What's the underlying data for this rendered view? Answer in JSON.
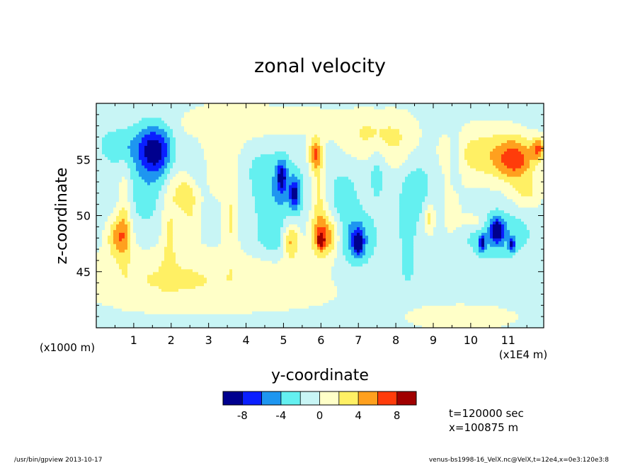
{
  "chart_data": {
    "type": "heatmap",
    "title": "zonal velocity",
    "xlabel": "y-coordinate",
    "ylabel": "z-coordinate",
    "x_scale_note": "(x1E4 m)",
    "y_scale_note": "(x1000 m)",
    "xlim": [
      0,
      11.95
    ],
    "ylim": [
      40,
      60
    ],
    "x_ticks": [
      1,
      2,
      3,
      4,
      5,
      6,
      7,
      8,
      9,
      10,
      11
    ],
    "y_ticks": [
      45,
      50,
      55
    ],
    "colorbar": {
      "levels": [
        -10,
        -8,
        -6,
        -4,
        -2,
        0,
        2,
        4,
        6,
        8,
        10
      ],
      "tick_labels": [
        "-8",
        "-4",
        "0",
        "4",
        "8"
      ],
      "tick_values": [
        -8,
        -4,
        0,
        4,
        8
      ],
      "colors": [
        "#00008e",
        "#0a1fff",
        "#1e96f0",
        "#64f0f0",
        "#c8f5f5",
        "#ffffc8",
        "#fff064",
        "#ffa01e",
        "#ff3c0a",
        "#a00000"
      ]
    },
    "background_level": -1,
    "features": [
      {
        "x": 1.6,
        "z": 55.8,
        "v": -8.4,
        "sx": 0.32,
        "sz": 1.6
      },
      {
        "x": 0.8,
        "z": 56.2,
        "v": -3.0,
        "sx": 0.5,
        "sz": 1.2
      },
      {
        "x": 0.6,
        "z": 48.2,
        "v": 5.0,
        "sx": 0.22,
        "sz": 1.3
      },
      {
        "x": 0.75,
        "z": 50.5,
        "v": 2.4,
        "sx": 0.12,
        "sz": 3.0
      },
      {
        "x": 1.3,
        "z": 52.5,
        "v": -2.6,
        "sx": 0.35,
        "sz": 2.5
      },
      {
        "x": 1.95,
        "z": 49.0,
        "v": 2.5,
        "sx": 0.15,
        "sz": 2.6
      },
      {
        "x": 2.4,
        "z": 52.0,
        "v": 3.2,
        "sx": 0.25,
        "sz": 1.2
      },
      {
        "x": 2.65,
        "z": 54.0,
        "v": -3.2,
        "sx": 0.22,
        "sz": 2.0
      },
      {
        "x": 2.5,
        "z": 49.8,
        "v": 1.6,
        "sx": 0.18,
        "sz": 2.0
      },
      {
        "x": 3.6,
        "z": 49.5,
        "v": 2.4,
        "sx": 0.14,
        "sz": 2.5
      },
      {
        "x": 4.2,
        "z": 54.5,
        "v": -2.2,
        "sx": 0.35,
        "sz": 1.5
      },
      {
        "x": 4.8,
        "z": 52.0,
        "v": -3.6,
        "sx": 0.45,
        "sz": 2.4
      },
      {
        "x": 4.95,
        "z": 53.5,
        "v": -7.2,
        "sx": 0.1,
        "sz": 1.0
      },
      {
        "x": 5.3,
        "z": 52.0,
        "v": -7.2,
        "sx": 0.1,
        "sz": 1.0
      },
      {
        "x": 4.85,
        "z": 47.8,
        "v": -2.6,
        "sx": 0.45,
        "sz": 1.0
      },
      {
        "x": 5.2,
        "z": 47.8,
        "v": 6.2,
        "sx": 0.16,
        "sz": 1.1
      },
      {
        "x": 5.85,
        "z": 55.5,
        "v": 6.2,
        "sx": 0.12,
        "sz": 1.1
      },
      {
        "x": 5.95,
        "z": 51.5,
        "v": 2.8,
        "sx": 0.14,
        "sz": 2.6
      },
      {
        "x": 6.1,
        "z": 48.2,
        "v": 6.4,
        "sx": 0.28,
        "sz": 1.3
      },
      {
        "x": 6.0,
        "z": 47.8,
        "v": 8.6,
        "sx": 0.05,
        "sz": 0.4
      },
      {
        "x": 6.9,
        "z": 48.0,
        "v": -4.6,
        "sx": 0.35,
        "sz": 1.6
      },
      {
        "x": 7.0,
        "z": 47.6,
        "v": -7.2,
        "sx": 0.1,
        "sz": 0.8
      },
      {
        "x": 6.6,
        "z": 51.8,
        "v": -2.6,
        "sx": 0.25,
        "sz": 1.6
      },
      {
        "x": 7.3,
        "z": 57.0,
        "v": 2.4,
        "sx": 0.6,
        "sz": 1.5
      },
      {
        "x": 7.5,
        "z": 54.0,
        "v": -2.6,
        "sx": 0.15,
        "sz": 1.8
      },
      {
        "x": 8.2,
        "z": 56.5,
        "v": 1.6,
        "sx": 0.4,
        "sz": 2.0
      },
      {
        "x": 8.3,
        "z": 49.0,
        "v": -2.6,
        "sx": 0.14,
        "sz": 3.0
      },
      {
        "x": 8.6,
        "z": 53.0,
        "v": -2.6,
        "sx": 0.3,
        "sz": 2.5
      },
      {
        "x": 8.9,
        "z": 49.8,
        "v": 3.6,
        "sx": 0.1,
        "sz": 1.0
      },
      {
        "x": 9.5,
        "z": 50.5,
        "v": 1.6,
        "sx": 0.2,
        "sz": 2.0
      },
      {
        "x": 9.6,
        "z": 55.0,
        "v": -2.6,
        "sx": 0.12,
        "sz": 2.0
      },
      {
        "x": 10.1,
        "z": 49.5,
        "v": 2.4,
        "sx": 0.25,
        "sz": 0.6
      },
      {
        "x": 10.7,
        "z": 48.5,
        "v": -3.8,
        "sx": 0.55,
        "sz": 1.3
      },
      {
        "x": 10.7,
        "z": 48.7,
        "v": -7.2,
        "sx": 0.12,
        "sz": 0.8
      },
      {
        "x": 10.3,
        "z": 47.5,
        "v": -7.2,
        "sx": 0.06,
        "sz": 0.5
      },
      {
        "x": 11.1,
        "z": 47.4,
        "v": -7.2,
        "sx": 0.06,
        "sz": 0.4
      },
      {
        "x": 10.4,
        "z": 55.5,
        "v": 3.6,
        "sx": 0.8,
        "sz": 1.8
      },
      {
        "x": 11.2,
        "z": 55.0,
        "v": 5.8,
        "sx": 0.35,
        "sz": 1.3
      },
      {
        "x": 11.8,
        "z": 56.0,
        "v": 5.5,
        "sx": 0.12,
        "sz": 0.7
      },
      {
        "x": 11.5,
        "z": 52.0,
        "v": 2.4,
        "sx": 0.3,
        "sz": 1.0
      },
      {
        "x": 4.5,
        "z": 44.0,
        "v": 1.6,
        "sx": 2.5,
        "sz": 2.0
      },
      {
        "x": 1.5,
        "z": 44.5,
        "v": 1.6,
        "sx": 1.5,
        "sz": 2.0
      },
      {
        "x": 9.8,
        "z": 41.0,
        "v": 1.6,
        "sx": 1.2,
        "sz": 1.0
      },
      {
        "x": 3.2,
        "z": 55.5,
        "v": 1.8,
        "sx": 0.9,
        "sz": 3.0
      },
      {
        "x": 5.0,
        "z": 58.5,
        "v": 1.6,
        "sx": 1.5,
        "sz": 1.0
      },
      {
        "x": 8.5,
        "z": 44.5,
        "v": -1.6,
        "sx": 2.0,
        "sz": 1.5
      }
    ]
  },
  "info": {
    "time_text": "t=120000 sec",
    "x_text": "x=100875 m"
  },
  "footer": {
    "left": "/usr/bin/gpview  2013-10-17",
    "right": "venus-bs1998-16_VelX.nc@VelX,t=12e4,x=0e3:120e3:8"
  }
}
